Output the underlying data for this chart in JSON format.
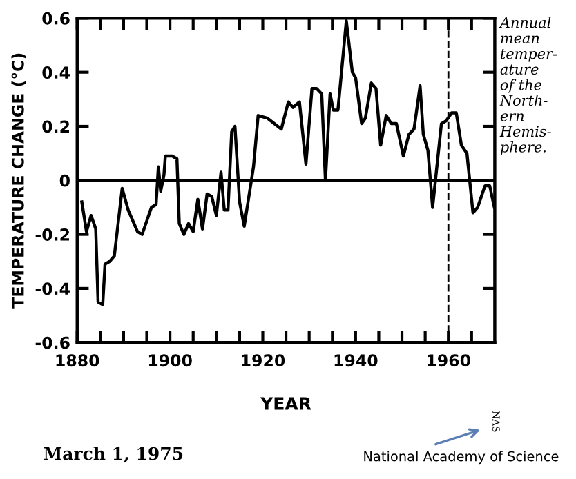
{
  "chart_data": {
    "type": "line",
    "xlabel": "YEAR",
    "ylabel": "TEMPERATURE CHANGE (°C)",
    "xlim": [
      1880,
      1970
    ],
    "ylim": [
      -0.6,
      0.6
    ],
    "xticks": [
      1880,
      {
        "value": 1885,
        "label": null
      },
      {
        "value": 1890,
        "label": null
      },
      {
        "value": 1895,
        "label": null
      },
      1900,
      {
        "value": 1905,
        "label": null
      },
      {
        "value": 1910,
        "label": null
      },
      {
        "value": 1915,
        "label": null
      },
      1920,
      {
        "value": 1925,
        "label": null
      },
      {
        "value": 1930,
        "label": null
      },
      {
        "value": 1935,
        "label": null
      },
      1940,
      {
        "value": 1945,
        "label": null
      },
      {
        "value": 1950,
        "label": null
      },
      {
        "value": 1955,
        "label": null
      },
      1960,
      {
        "value": 1965,
        "label": null
      }
    ],
    "yticks": [
      {
        "value": -0.6,
        "label": "-0.6"
      },
      {
        "value": -0.4,
        "label": "-0.4"
      },
      {
        "value": -0.2,
        "label": "-0.2"
      },
      0,
      0.2,
      0.4,
      0.6
    ],
    "series": [
      {
        "color": "#000000",
        "x": [
          1881,
          1882,
          1883,
          1884,
          1884.5,
          1885.5,
          1886,
          1887,
          1888,
          1889.7,
          1891,
          1893,
          1894,
          1896,
          1897,
          1897.5,
          1898,
          1898.7,
          1899,
          1900.5,
          1901.5,
          1902,
          1903,
          1904,
          1905,
          1906,
          1907,
          1908,
          1909,
          1910,
          1911,
          1911.7,
          1912.5,
          1913.3,
          1914,
          1915,
          1916,
          1918,
          1919,
          1921,
          1924,
          1925.5,
          1926.5,
          1927.9,
          1929.3,
          1930.6,
          1931.6,
          1932.7,
          1933.5,
          1934.5,
          1935.2,
          1936.2,
          1938,
          1939.3,
          1940,
          1941.3,
          1942.1,
          1943.4,
          1944.4,
          1945.4,
          1946.6,
          1947.7,
          1948.8,
          1950.3,
          1951.5,
          1952.6,
          1953.9,
          1954.6,
          1955.6,
          1956.6,
          1958.5,
          1959.5,
          1960.7,
          1961.7,
          1962.8,
          1964,
          1965.3,
          1966.3,
          1967.9,
          1968.9,
          1969.9
        ],
        "values": [
          -0.08,
          -0.19,
          -0.13,
          -0.18,
          -0.45,
          -0.46,
          -0.31,
          -0.3,
          -0.28,
          -0.03,
          -0.11,
          -0.19,
          -0.2,
          -0.1,
          -0.09,
          0.05,
          -0.04,
          0.02,
          0.09,
          0.09,
          0.08,
          -0.16,
          -0.2,
          -0.16,
          -0.19,
          -0.07,
          -0.18,
          -0.05,
          -0.06,
          -0.13,
          0.03,
          -0.11,
          -0.11,
          0.18,
          0.2,
          -0.08,
          -0.17,
          0.05,
          0.24,
          0.23,
          0.19,
          0.29,
          0.27,
          0.29,
          0.06,
          0.34,
          0.34,
          0.32,
          0.0,
          0.32,
          0.26,
          0.26,
          0.59,
          0.4,
          0.38,
          0.21,
          0.23,
          0.36,
          0.34,
          0.13,
          0.24,
          0.21,
          0.21,
          0.09,
          0.17,
          0.19,
          0.35,
          0.17,
          0.11,
          -0.1,
          0.21,
          0.22,
          0.25,
          0.25,
          0.13,
          0.1,
          -0.12,
          -0.1,
          -0.02,
          -0.02,
          -0.1
        ]
      }
    ],
    "ref_lines": [
      {
        "axis": "y",
        "value": 0,
        "color": "#000000",
        "line_style": "solid"
      },
      {
        "axis": "x",
        "value": 1960,
        "color": "#000000",
        "line_style": "dashed"
      }
    ],
    "annotations": [
      "Annual\nmean\ntemper-\nature\nof the\nNorth-\nern\nHemis-\nphere.",
      "March 1, 1975",
      "NAS",
      "National Academy of Science"
    ],
    "grid": false,
    "marker": "none",
    "line_style": "solid"
  }
}
